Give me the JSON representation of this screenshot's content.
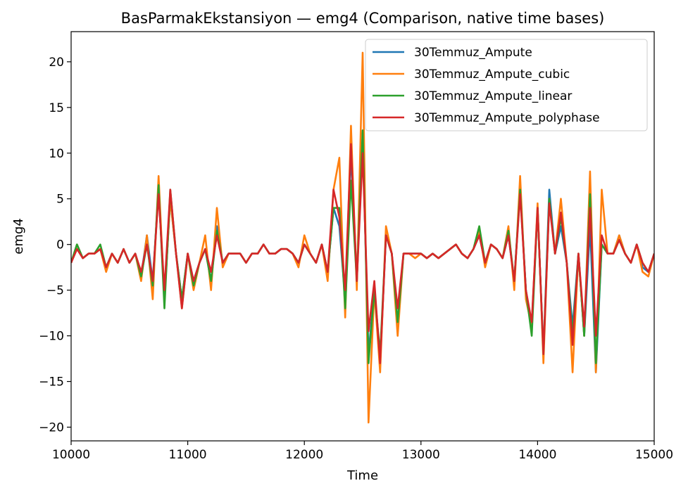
{
  "chart_data": {
    "type": "line",
    "title": "BasParmakEkstansiyon — emg4 (Comparison, native time bases)",
    "xlabel": "Time",
    "ylabel": "emg4",
    "xlim": [
      10000,
      15000
    ],
    "ylim": [
      -21.5,
      23.3
    ],
    "x_ticks": [
      10000,
      11000,
      12000,
      13000,
      14000,
      15000
    ],
    "x_tick_labels": [
      "10000",
      "11000",
      "12000",
      "13000",
      "14000",
      "15000"
    ],
    "y_ticks": [
      -20,
      -15,
      -10,
      -5,
      0,
      5,
      10,
      15,
      20
    ],
    "y_tick_labels": [
      "−20",
      "−15",
      "−10",
      "−5",
      "0",
      "5",
      "10",
      "15",
      "20"
    ],
    "grid": false,
    "legend_position": "top-right",
    "x": [
      10000,
      10050,
      10100,
      10150,
      10200,
      10250,
      10300,
      10350,
      10400,
      10450,
      10500,
      10550,
      10600,
      10650,
      10700,
      10750,
      10800,
      10850,
      10900,
      10950,
      11000,
      11050,
      11100,
      11150,
      11200,
      11250,
      11300,
      11350,
      11400,
      11450,
      11500,
      11550,
      11600,
      11650,
      11700,
      11750,
      11800,
      11850,
      11900,
      11950,
      12000,
      12050,
      12100,
      12150,
      12200,
      12250,
      12300,
      12350,
      12400,
      12450,
      12500,
      12550,
      12600,
      12650,
      12700,
      12750,
      12800,
      12850,
      12900,
      12950,
      13000,
      13050,
      13100,
      13150,
      13200,
      13250,
      13300,
      13350,
      13400,
      13450,
      13500,
      13550,
      13600,
      13650,
      13700,
      13750,
      13800,
      13850,
      13900,
      13950,
      14000,
      14050,
      14100,
      14150,
      14200,
      14250,
      14300,
      14350,
      14400,
      14450,
      14500,
      14550,
      14600,
      14650,
      14700,
      14750,
      14800,
      14850,
      14900,
      14950,
      15000
    ],
    "series": [
      {
        "name": "30Temmuz_Ampute",
        "color": "#1f77b4",
        "values": [
          -2,
          0,
          -1.5,
          -1,
          -1,
          -0.5,
          -2.5,
          -1,
          -2,
          -0.5,
          -2,
          -1,
          -3.5,
          1,
          -4,
          6,
          -6,
          5,
          -1,
          -6,
          -1,
          -4,
          -2,
          -0.5,
          -4,
          2,
          -2,
          -1,
          -1,
          -1,
          -2,
          -1,
          -1,
          0,
          -1,
          -1,
          -0.5,
          -0.5,
          -1,
          -2,
          0,
          -1,
          -2,
          0,
          -3,
          4,
          2,
          -6,
          10,
          -4,
          12,
          -12,
          -5,
          -13,
          1,
          -1,
          -9,
          -1,
          -1,
          -1,
          -1,
          -1.5,
          -1,
          -1.5,
          -1,
          -0.5,
          0,
          -1,
          -1.5,
          -0.5,
          1,
          -2,
          0,
          -0.5,
          -1.5,
          1,
          -4,
          6,
          -5,
          -9,
          4,
          -12,
          6,
          -1,
          2,
          -2,
          -9,
          -1,
          -10,
          2,
          -14,
          0,
          -1,
          -1,
          1,
          -1,
          -2,
          0,
          -2.5,
          -3,
          -1
        ]
      },
      {
        "name": "30Temmuz_Ampute_cubic",
        "color": "#ff7f0e",
        "values": [
          -2,
          0,
          -1.5,
          -1,
          -1,
          -0.5,
          -3,
          -1,
          -2,
          -0.5,
          -2,
          -1,
          -4,
          1,
          -6,
          7.5,
          -6,
          5,
          -1,
          -7,
          -1,
          -5,
          -2,
          1,
          -5,
          4,
          -2.5,
          -1,
          -1,
          -1,
          -2,
          -1,
          -1,
          0,
          -1,
          -1,
          -0.5,
          -0.5,
          -1,
          -2.5,
          1,
          -1,
          -2,
          0,
          -4,
          6,
          9.5,
          -8,
          13,
          -5,
          21,
          -19.5,
          -5,
          -14,
          2,
          -1,
          -10,
          -1,
          -1,
          -1.5,
          -1,
          -1.5,
          -1,
          -1.5,
          -1,
          -0.5,
          0,
          -1,
          -1.5,
          -0.5,
          1.5,
          -2.5,
          0,
          -0.5,
          -1.5,
          2,
          -5,
          7.5,
          -6,
          -9,
          4.5,
          -13,
          5,
          -1,
          5,
          -2,
          -14,
          -1,
          -10,
          8,
          -14,
          6,
          -1,
          -1,
          1,
          -1,
          -2,
          0,
          -3,
          -3.5,
          -1
        ]
      },
      {
        "name": "30Temmuz_Ampute_linear",
        "color": "#2ca02c",
        "values": [
          -2,
          0,
          -1.5,
          -1,
          -1,
          0,
          -2.5,
          -1,
          -2,
          -0.5,
          -2,
          -1,
          -3.5,
          0,
          -4.5,
          6.5,
          -7,
          6,
          -1,
          -6,
          -1,
          -4.5,
          -2,
          -0.5,
          -4,
          1.5,
          -2,
          -1,
          -1,
          -1,
          -2,
          -1,
          -1,
          0,
          -1,
          -1,
          -0.5,
          -0.5,
          -1,
          -2,
          0,
          -1,
          -2,
          0,
          -3,
          4,
          4,
          -7,
          7,
          -4,
          12.5,
          -13,
          -5,
          -12,
          1,
          -1,
          -8.5,
          -1,
          -1,
          -1,
          -1,
          -1.5,
          -1,
          -1.5,
          -1,
          -0.5,
          0,
          -1,
          -1.5,
          -0.5,
          2,
          -2,
          0,
          -0.5,
          -1.5,
          1.5,
          -4,
          6,
          -5,
          -10,
          4,
          -12,
          5,
          -1,
          3,
          -2,
          -10,
          -1,
          -10,
          5.5,
          -13,
          0,
          -1,
          -1,
          0.5,
          -1,
          -2,
          0,
          -2,
          -3,
          -1
        ]
      },
      {
        "name": "30Temmuz_Ampute_polyphase",
        "color": "#d62728",
        "values": [
          -2,
          -0.5,
          -1.5,
          -1,
          -1,
          -0.5,
          -2.5,
          -1,
          -2,
          -0.5,
          -2,
          -1,
          -3,
          0,
          -4,
          5.5,
          -5,
          6,
          -1,
          -7,
          -1,
          -4,
          -2,
          -0.5,
          -3,
          1,
          -2,
          -1,
          -1,
          -1,
          -2,
          -1,
          -1,
          0,
          -1,
          -1,
          -0.5,
          -0.5,
          -1,
          -2,
          0,
          -1,
          -2,
          0,
          -3,
          6,
          3,
          -5,
          11,
          -4,
          10,
          -9.5,
          -4,
          -13,
          1,
          -1,
          -7,
          -1,
          -1,
          -1,
          -1,
          -1.5,
          -1,
          -1.5,
          -1,
          -0.5,
          0,
          -1,
          -1.5,
          -0.5,
          1,
          -2,
          0,
          -0.5,
          -1.5,
          1,
          -4,
          5.5,
          -5,
          -8.5,
          4,
          -12,
          4.5,
          -1,
          3.5,
          -2,
          -11,
          -1,
          -9,
          4,
          -10,
          1,
          -1,
          -1,
          0.5,
          -1,
          -2,
          0,
          -2,
          -3,
          -1
        ]
      }
    ]
  }
}
